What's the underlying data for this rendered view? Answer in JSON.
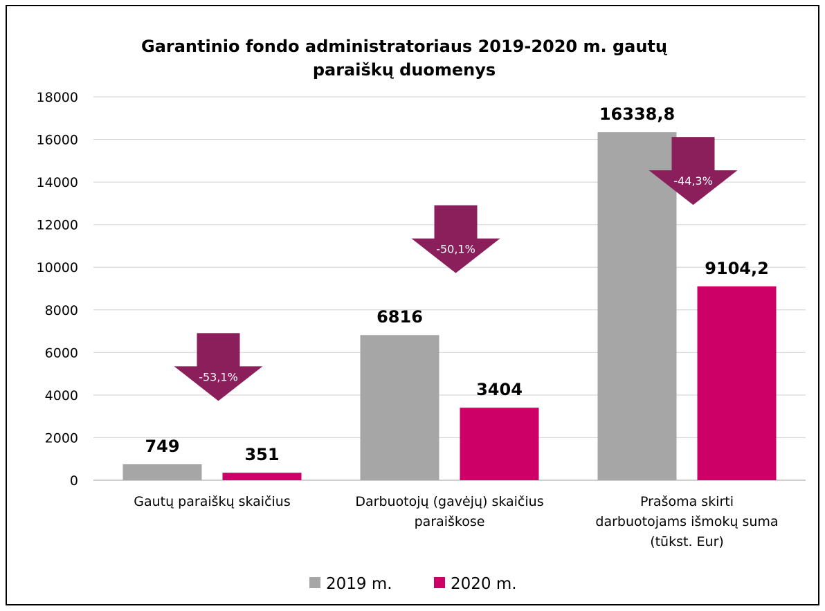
{
  "chart_data": {
    "type": "bar",
    "title": [
      "Garantinio fondo administratoriaus 2019-2020 m. gautų",
      "paraiškų duomenys"
    ],
    "categories": [
      [
        "Gautų paraiškų skaičius"
      ],
      [
        "Darbuotojų (gavėjų) skaičius",
        "paraiškose"
      ],
      [
        "Prašoma skirti",
        "darbuotojams išmokų suma",
        "(tūkst. Eur)"
      ]
    ],
    "series": [
      {
        "name": "2019 m.",
        "color": "#a6a6a6",
        "values": [
          749,
          6816,
          16338.8
        ],
        "labels": [
          "749",
          "6816",
          "16338,8"
        ]
      },
      {
        "name": "2020 m.",
        "color": "#cc0066",
        "values": [
          351,
          3404,
          9104.2
        ],
        "labels": [
          "351",
          "3404",
          "9104,2"
        ]
      }
    ],
    "change_arrows": {
      "color": "#8b1f5c",
      "labels": [
        "-53,1%",
        "-50,1%",
        "-44,3%"
      ]
    },
    "ylim": [
      0,
      18000
    ],
    "yticks": [
      0,
      2000,
      4000,
      6000,
      8000,
      10000,
      12000,
      14000,
      16000,
      18000
    ],
    "grid": true,
    "legend_position": "bottom"
  }
}
